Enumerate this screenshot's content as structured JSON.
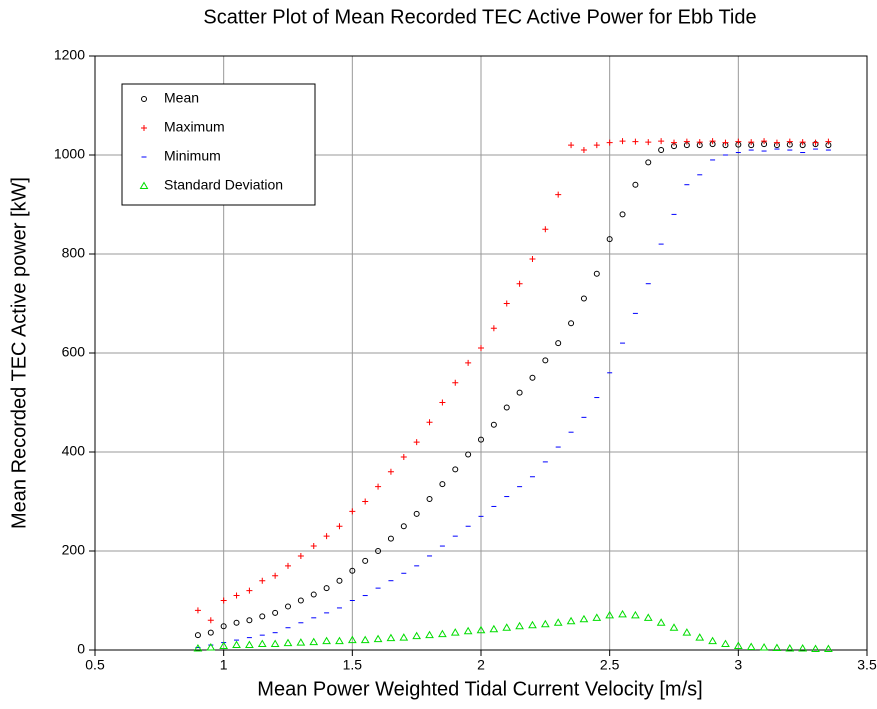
{
  "chart_data": {
    "type": "scatter",
    "title": "Scatter Plot of Mean Recorded TEC Active Power for Ebb Tide",
    "x_label": "Mean Power Weighted Tidal Current Velocity [m/s]",
    "y_label": "Mean Recorded TEC Active power [kW]",
    "x": [
      0.9,
      0.95,
      1.0,
      1.05,
      1.1,
      1.15,
      1.2,
      1.25,
      1.3,
      1.35,
      1.4,
      1.45,
      1.5,
      1.55,
      1.6,
      1.65,
      1.7,
      1.75,
      1.8,
      1.85,
      1.9,
      1.95,
      2.0,
      2.05,
      2.1,
      2.15,
      2.2,
      2.25,
      2.3,
      2.35,
      2.4,
      2.45,
      2.5,
      2.55,
      2.6,
      2.65,
      2.7,
      2.75,
      2.8,
      2.85,
      2.9,
      2.95,
      3.0,
      3.05,
      3.1,
      3.15,
      3.2,
      3.25,
      3.3,
      3.35
    ],
    "series": [
      {
        "name": "Mean",
        "color": "#000000",
        "marker": "circle",
        "values": [
          30,
          35,
          48,
          55,
          60,
          68,
          75,
          88,
          100,
          112,
          125,
          140,
          160,
          180,
          200,
          225,
          250,
          275,
          305,
          335,
          365,
          395,
          425,
          455,
          490,
          520,
          550,
          585,
          620,
          660,
          710,
          760,
          830,
          880,
          940,
          985,
          1010,
          1018,
          1020,
          1020,
          1022,
          1020,
          1021,
          1020,
          1022,
          1020,
          1021,
          1020,
          1022,
          1020
        ]
      },
      {
        "name": "Maximum",
        "color": "#ff0000",
        "marker": "plus",
        "values": [
          80,
          60,
          100,
          110,
          120,
          140,
          150,
          170,
          190,
          210,
          230,
          250,
          280,
          300,
          330,
          360,
          390,
          420,
          460,
          500,
          540,
          580,
          610,
          650,
          700,
          740,
          790,
          850,
          920,
          1020,
          1010,
          1020,
          1025,
          1028,
          1027,
          1026,
          1028,
          1025,
          1027,
          1026,
          1028,
          1025,
          1027,
          1026,
          1028,
          1025,
          1027,
          1026,
          1025,
          1027
        ]
      },
      {
        "name": "Minimum",
        "color": "#0000ff",
        "marker": "dash",
        "values": [
          5,
          10,
          15,
          20,
          25,
          30,
          35,
          45,
          55,
          65,
          75,
          85,
          100,
          110,
          125,
          140,
          155,
          170,
          190,
          210,
          230,
          250,
          270,
          290,
          310,
          330,
          350,
          380,
          410,
          440,
          470,
          510,
          560,
          620,
          680,
          740,
          820,
          880,
          940,
          960,
          990,
          1000,
          1005,
          1010,
          1008,
          1012,
          1010,
          1005,
          1012,
          1010
        ]
      },
      {
        "name": "Standard Deviation",
        "color": "#00dd00",
        "marker": "triangle",
        "values": [
          3,
          5,
          8,
          10,
          10,
          12,
          12,
          14,
          15,
          16,
          18,
          18,
          20,
          20,
          22,
          24,
          25,
          28,
          30,
          32,
          35,
          38,
          40,
          42,
          45,
          48,
          50,
          52,
          55,
          58,
          62,
          65,
          70,
          72,
          70,
          65,
          55,
          45,
          35,
          25,
          18,
          12,
          8,
          6,
          5,
          4,
          3,
          3,
          2,
          2
        ]
      }
    ],
    "xlim": [
      0.5,
      3.5
    ],
    "xticks": [
      0.5,
      1,
      1.5,
      2,
      2.5,
      3,
      3.5
    ],
    "ylim": [
      0,
      1200
    ],
    "yticks": [
      0,
      200,
      400,
      600,
      800,
      1000,
      1200
    ],
    "grid": true,
    "legend": "upper left"
  }
}
